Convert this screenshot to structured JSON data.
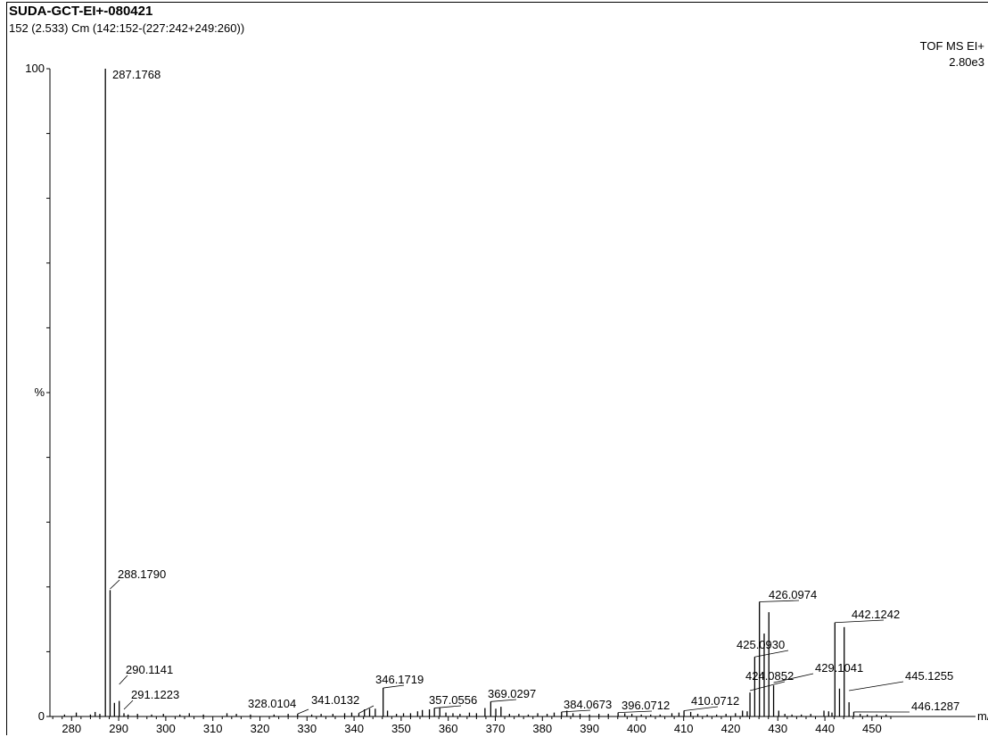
{
  "header": {
    "title": "SUDA-GCT-EI+-080421",
    "subtitle": "152 (2.533) Cm (142:152-(227:242+249:260))",
    "mode": "TOF MS EI+",
    "intensity": "2.80e3"
  },
  "chart_data": {
    "type": "bar",
    "title": "SUDA-GCT-EI+-080421",
    "xlabel": "m/z",
    "ylabel": "%",
    "xlim": [
      273,
      459
    ],
    "ylim": [
      0,
      100
    ],
    "x_ticks": [
      280,
      290,
      300,
      310,
      320,
      330,
      340,
      350,
      360,
      370,
      380,
      390,
      400,
      410,
      420,
      430,
      440,
      450
    ],
    "y_tick_labels": [
      "100",
      "%",
      "0"
    ],
    "grid": false,
    "peaks": [
      {
        "mz": 287.1768,
        "intensity": 100,
        "label": "287.1768"
      },
      {
        "mz": 288.179,
        "intensity": 19.5,
        "label": "288.1790"
      },
      {
        "mz": 290.1141,
        "intensity": 2.4,
        "label": "290.1141"
      },
      {
        "mz": 291.1223,
        "intensity": 0.5,
        "label": "291.1223"
      },
      {
        "mz": 328.0104,
        "intensity": 0.4,
        "label": "328.0104"
      },
      {
        "mz": 341.0132,
        "intensity": 0.5,
        "label": "341.0132"
      },
      {
        "mz": 346.1719,
        "intensity": 4.4,
        "label": "346.1719"
      },
      {
        "mz": 357.0556,
        "intensity": 1.3,
        "label": "357.0556"
      },
      {
        "mz": 369.0297,
        "intensity": 2.3,
        "label": "369.0297"
      },
      {
        "mz": 384.0673,
        "intensity": 0.7,
        "label": "384.0673"
      },
      {
        "mz": 396.0712,
        "intensity": 0.6,
        "label": "396.0712"
      },
      {
        "mz": 410.0712,
        "intensity": 0.9,
        "label": "410.0712"
      },
      {
        "mz": 424.0852,
        "intensity": 3.7,
        "label": "424.0852"
      },
      {
        "mz": 425.093,
        "intensity": 9.2,
        "label": "425.0930"
      },
      {
        "mz": 426.0974,
        "intensity": 17.7,
        "label": "426.0974"
      },
      {
        "mz": 429.1041,
        "intensity": 4.8,
        "label": "429.1041"
      },
      {
        "mz": 442.1242,
        "intensity": 14.5,
        "label": "442.1242"
      },
      {
        "mz": 445.1255,
        "intensity": 2.2,
        "label": "445.1255"
      },
      {
        "mz": 446.1287,
        "intensity": 0.7,
        "label": "446.1287"
      },
      {
        "mz": 278.5,
        "intensity": 0.3
      },
      {
        "mz": 281.0,
        "intensity": 0.6
      },
      {
        "mz": 284.0,
        "intensity": 0.3
      },
      {
        "mz": 285.0,
        "intensity": 0.7
      },
      {
        "mz": 286.0,
        "intensity": 0.4
      },
      {
        "mz": 289.1,
        "intensity": 2.1
      },
      {
        "mz": 292.0,
        "intensity": 0.3
      },
      {
        "mz": 294.0,
        "intensity": 0.4
      },
      {
        "mz": 297.0,
        "intensity": 0.3
      },
      {
        "mz": 299.5,
        "intensity": 0.4
      },
      {
        "mz": 303.0,
        "intensity": 0.3
      },
      {
        "mz": 305.0,
        "intensity": 0.5
      },
      {
        "mz": 308.0,
        "intensity": 0.3
      },
      {
        "mz": 313.0,
        "intensity": 0.5
      },
      {
        "mz": 315.0,
        "intensity": 0.4
      },
      {
        "mz": 318.0,
        "intensity": 0.3
      },
      {
        "mz": 323.0,
        "intensity": 0.3
      },
      {
        "mz": 326.0,
        "intensity": 0.4
      },
      {
        "mz": 331.0,
        "intensity": 0.3
      },
      {
        "mz": 333.0,
        "intensity": 0.4
      },
      {
        "mz": 335.5,
        "intensity": 0.4
      },
      {
        "mz": 338.0,
        "intensity": 0.5
      },
      {
        "mz": 339.5,
        "intensity": 0.6
      },
      {
        "mz": 342.2,
        "intensity": 1.1
      },
      {
        "mz": 343.3,
        "intensity": 1.2
      },
      {
        "mz": 344.5,
        "intensity": 1.2
      },
      {
        "mz": 347.1,
        "intensity": 0.9
      },
      {
        "mz": 349.0,
        "intensity": 0.4
      },
      {
        "mz": 350.5,
        "intensity": 0.5
      },
      {
        "mz": 352.0,
        "intensity": 0.5
      },
      {
        "mz": 353.5,
        "intensity": 0.8
      },
      {
        "mz": 354.5,
        "intensity": 1.0
      },
      {
        "mz": 356.0,
        "intensity": 1.1
      },
      {
        "mz": 358.2,
        "intensity": 1.3
      },
      {
        "mz": 359.5,
        "intensity": 0.6
      },
      {
        "mz": 361.0,
        "intensity": 0.5
      },
      {
        "mz": 362.5,
        "intensity": 0.4
      },
      {
        "mz": 364.5,
        "intensity": 0.6
      },
      {
        "mz": 366.0,
        "intensity": 0.5
      },
      {
        "mz": 367.8,
        "intensity": 1.3
      },
      {
        "mz": 370.1,
        "intensity": 1.2
      },
      {
        "mz": 371.2,
        "intensity": 1.5
      },
      {
        "mz": 373.0,
        "intensity": 0.4
      },
      {
        "mz": 375.0,
        "intensity": 0.4
      },
      {
        "mz": 377.0,
        "intensity": 0.3
      },
      {
        "mz": 379.0,
        "intensity": 0.5
      },
      {
        "mz": 381.0,
        "intensity": 0.4
      },
      {
        "mz": 382.5,
        "intensity": 0.6
      },
      {
        "mz": 385.2,
        "intensity": 0.9
      },
      {
        "mz": 386.5,
        "intensity": 0.5
      },
      {
        "mz": 388.0,
        "intensity": 0.4
      },
      {
        "mz": 390.0,
        "intensity": 0.3
      },
      {
        "mz": 392.0,
        "intensity": 0.4
      },
      {
        "mz": 394.0,
        "intensity": 0.4
      },
      {
        "mz": 397.5,
        "intensity": 0.5
      },
      {
        "mz": 399.0,
        "intensity": 0.4
      },
      {
        "mz": 401.0,
        "intensity": 0.3
      },
      {
        "mz": 403.0,
        "intensity": 0.3
      },
      {
        "mz": 405.0,
        "intensity": 0.3
      },
      {
        "mz": 407.5,
        "intensity": 0.5
      },
      {
        "mz": 409.0,
        "intensity": 0.6
      },
      {
        "mz": 411.5,
        "intensity": 0.7
      },
      {
        "mz": 413.0,
        "intensity": 0.4
      },
      {
        "mz": 415.0,
        "intensity": 0.3
      },
      {
        "mz": 417.0,
        "intensity": 0.3
      },
      {
        "mz": 419.0,
        "intensity": 0.4
      },
      {
        "mz": 421.0,
        "intensity": 0.5
      },
      {
        "mz": 422.5,
        "intensity": 0.9
      },
      {
        "mz": 423.5,
        "intensity": 0.8
      },
      {
        "mz": 427.1,
        "intensity": 12.8
      },
      {
        "mz": 428.1,
        "intensity": 16.1
      },
      {
        "mz": 430.2,
        "intensity": 0.9
      },
      {
        "mz": 431.5,
        "intensity": 0.4
      },
      {
        "mz": 433.0,
        "intensity": 0.3
      },
      {
        "mz": 435.0,
        "intensity": 0.3
      },
      {
        "mz": 437.0,
        "intensity": 0.4
      },
      {
        "mz": 439.8,
        "intensity": 0.9
      },
      {
        "mz": 440.8,
        "intensity": 0.8
      },
      {
        "mz": 441.5,
        "intensity": 0.6
      },
      {
        "mz": 443.1,
        "intensity": 4.3
      },
      {
        "mz": 444.1,
        "intensity": 13.8
      },
      {
        "mz": 447.5,
        "intensity": 0.4
      },
      {
        "mz": 449.0,
        "intensity": 0.3
      },
      {
        "mz": 451.0,
        "intensity": 0.3
      },
      {
        "mz": 453.0,
        "intensity": 0.3
      }
    ]
  }
}
